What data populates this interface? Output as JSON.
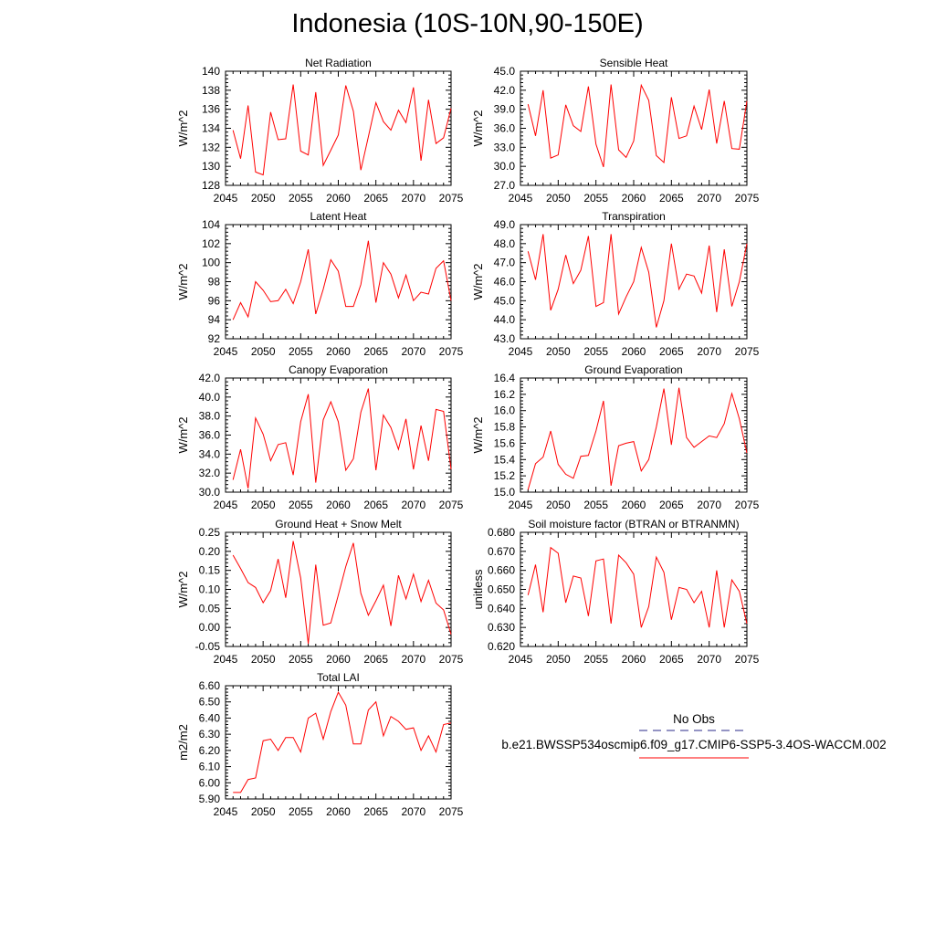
{
  "title": "Indonesia (10S-10N,90-150E)",
  "colors": {
    "series": "#ff0000",
    "obs": "#2a2a8a",
    "axis": "#000000"
  },
  "legend": {
    "obs_label": "No Obs",
    "model_label": "b.e21.BWSSP534oscmip6.f09_g17.CMIP6-SSP5-3.4OS-WACCM.002"
  },
  "chart_data": [
    {
      "type": "line",
      "title": "Net Radiation",
      "ylabel": "W/m^2",
      "xlim": [
        2045,
        2075
      ],
      "ylim": [
        128,
        140
      ],
      "xticks": [
        "2045",
        "2050",
        "2055",
        "2060",
        "2065",
        "2070",
        "2075"
      ],
      "yticks": [
        "128",
        "130",
        "132",
        "134",
        "136",
        "138",
        "140"
      ],
      "x": [
        2046,
        2047,
        2048,
        2049,
        2050,
        2051,
        2052,
        2053,
        2054,
        2055,
        2056,
        2057,
        2058,
        2059,
        2060,
        2061,
        2062,
        2063,
        2064,
        2065,
        2066,
        2067,
        2068,
        2069,
        2070,
        2071,
        2072,
        2073,
        2074,
        2075
      ],
      "series": [
        {
          "values": [
            133.8,
            130.8,
            136.4,
            129.4,
            129.1,
            135.7,
            132.8,
            132.9,
            138.6,
            131.6,
            131.2,
            137.8,
            130.1,
            131.7,
            133.3,
            138.5,
            135.8,
            129.6,
            133.1,
            136.7,
            134.7,
            133.8,
            135.9,
            134.6,
            138.3,
            130.6,
            137.0,
            132.4,
            133.0,
            136.1
          ]
        }
      ]
    },
    {
      "type": "line",
      "title": "Sensible Heat",
      "ylabel": "W/m^2",
      "xlim": [
        2045,
        2075
      ],
      "ylim": [
        27.0,
        45.0
      ],
      "xticks": [
        "2045",
        "2050",
        "2055",
        "2060",
        "2065",
        "2070",
        "2075"
      ],
      "yticks": [
        "27.0",
        "30.0",
        "33.0",
        "36.0",
        "39.0",
        "42.0",
        "45.0"
      ],
      "x": [
        2046,
        2047,
        2048,
        2049,
        2050,
        2051,
        2052,
        2053,
        2054,
        2055,
        2056,
        2057,
        2058,
        2059,
        2060,
        2061,
        2062,
        2063,
        2064,
        2065,
        2066,
        2067,
        2068,
        2069,
        2070,
        2071,
        2072,
        2073,
        2074,
        2075
      ],
      "series": [
        {
          "values": [
            39.8,
            34.8,
            42.0,
            31.3,
            31.8,
            39.7,
            36.4,
            35.5,
            42.6,
            33.5,
            29.9,
            42.9,
            32.6,
            31.4,
            34.0,
            42.8,
            40.4,
            31.7,
            30.6,
            40.9,
            34.4,
            34.8,
            39.5,
            35.8,
            42.1,
            33.6,
            40.3,
            32.8,
            32.7,
            40.3
          ]
        }
      ]
    },
    {
      "type": "line",
      "title": "Latent Heat",
      "ylabel": "W/m^2",
      "xlim": [
        2045,
        2075
      ],
      "ylim": [
        92,
        104
      ],
      "xticks": [
        "2045",
        "2050",
        "2055",
        "2060",
        "2065",
        "2070",
        "2075"
      ],
      "yticks": [
        "92",
        "94",
        "96",
        "98",
        "100",
        "102",
        "104"
      ],
      "x": [
        2046,
        2047,
        2048,
        2049,
        2050,
        2051,
        2052,
        2053,
        2054,
        2055,
        2056,
        2057,
        2058,
        2059,
        2060,
        2061,
        2062,
        2063,
        2064,
        2065,
        2066,
        2067,
        2068,
        2069,
        2070,
        2071,
        2072,
        2073,
        2074,
        2075
      ],
      "series": [
        {
          "values": [
            94.0,
            95.8,
            94.3,
            98.0,
            97.1,
            95.9,
            96.0,
            97.2,
            95.7,
            98.0,
            101.4,
            94.6,
            97.2,
            100.3,
            99.1,
            95.4,
            95.4,
            97.7,
            102.3,
            95.8,
            100.0,
            98.8,
            96.3,
            98.7,
            96.0,
            96.9,
            96.7,
            99.4,
            100.2,
            96.0
          ]
        }
      ]
    },
    {
      "type": "line",
      "title": "Transpiration",
      "ylabel": "W/m^2",
      "xlim": [
        2045,
        2075
      ],
      "ylim": [
        43.0,
        49.0
      ],
      "xticks": [
        "2045",
        "2050",
        "2055",
        "2060",
        "2065",
        "2070",
        "2075"
      ],
      "yticks": [
        "43.0",
        "44.0",
        "45.0",
        "46.0",
        "47.0",
        "48.0",
        "49.0"
      ],
      "x": [
        2046,
        2047,
        2048,
        2049,
        2050,
        2051,
        2052,
        2053,
        2054,
        2055,
        2056,
        2057,
        2058,
        2059,
        2060,
        2061,
        2062,
        2063,
        2064,
        2065,
        2066,
        2067,
        2068,
        2069,
        2070,
        2071,
        2072,
        2073,
        2074,
        2075
      ],
      "series": [
        {
          "values": [
            47.6,
            46.1,
            48.5,
            44.5,
            45.6,
            47.4,
            45.9,
            46.6,
            48.4,
            44.7,
            44.9,
            48.5,
            44.3,
            45.2,
            46.0,
            47.8,
            46.5,
            43.6,
            45.0,
            48.0,
            45.6,
            46.4,
            46.3,
            45.4,
            47.9,
            44.4,
            47.7,
            44.7,
            46.0,
            48.0
          ]
        }
      ]
    },
    {
      "type": "line",
      "title": "Canopy Evaporation",
      "ylabel": "W/m^2",
      "xlim": [
        2045,
        2075
      ],
      "ylim": [
        30.0,
        42.0
      ],
      "xticks": [
        "2045",
        "2050",
        "2055",
        "2060",
        "2065",
        "2070",
        "2075"
      ],
      "yticks": [
        "30.0",
        "32.0",
        "34.0",
        "36.0",
        "38.0",
        "40.0",
        "42.0"
      ],
      "x": [
        2046,
        2047,
        2048,
        2049,
        2050,
        2051,
        2052,
        2053,
        2054,
        2055,
        2056,
        2057,
        2058,
        2059,
        2060,
        2061,
        2062,
        2063,
        2064,
        2065,
        2066,
        2067,
        2068,
        2069,
        2070,
        2071,
        2072,
        2073,
        2074,
        2075
      ],
      "series": [
        {
          "values": [
            31.3,
            34.5,
            30.4,
            37.8,
            36.1,
            33.3,
            35.0,
            35.2,
            31.8,
            37.4,
            40.3,
            31.0,
            37.6,
            39.5,
            37.4,
            32.3,
            33.5,
            38.4,
            40.9,
            32.3,
            38.1,
            36.8,
            34.5,
            37.7,
            32.4,
            37.0,
            33.3,
            38.7,
            38.5,
            32.4
          ]
        }
      ]
    },
    {
      "type": "line",
      "title": "Ground Evaporation",
      "ylabel": "W/m^2",
      "xlim": [
        2045,
        2075
      ],
      "ylim": [
        15.0,
        16.4
      ],
      "xticks": [
        "2045",
        "2050",
        "2055",
        "2060",
        "2065",
        "2070",
        "2075"
      ],
      "yticks": [
        "15.0",
        "15.2",
        "15.4",
        "15.6",
        "15.8",
        "16.0",
        "16.2",
        "16.4"
      ],
      "x": [
        2046,
        2047,
        2048,
        2049,
        2050,
        2051,
        2052,
        2053,
        2054,
        2055,
        2056,
        2057,
        2058,
        2059,
        2060,
        2061,
        2062,
        2063,
        2064,
        2065,
        2066,
        2067,
        2068,
        2069,
        2070,
        2071,
        2072,
        2073,
        2074,
        2075
      ],
      "series": [
        {
          "values": [
            15.03,
            15.35,
            15.43,
            15.75,
            15.34,
            15.22,
            15.17,
            15.44,
            15.45,
            15.75,
            16.12,
            15.08,
            15.57,
            15.6,
            15.62,
            15.26,
            15.4,
            15.8,
            16.27,
            15.58,
            16.28,
            15.67,
            15.55,
            15.62,
            15.69,
            15.67,
            15.84,
            16.21,
            15.9,
            15.48
          ]
        }
      ]
    },
    {
      "type": "line",
      "title": "Ground Heat + Snow Melt",
      "ylabel": "W/m^2",
      "xlim": [
        2045,
        2075
      ],
      "ylim": [
        -0.05,
        0.25
      ],
      "xticks": [
        "2045",
        "2050",
        "2055",
        "2060",
        "2065",
        "2070",
        "2075"
      ],
      "yticks": [
        "-0.05",
        "0.00",
        "0.05",
        "0.10",
        "0.15",
        "0.20",
        "0.25"
      ],
      "x": [
        2046,
        2047,
        2048,
        2049,
        2050,
        2051,
        2052,
        2053,
        2054,
        2055,
        2056,
        2057,
        2058,
        2059,
        2060,
        2061,
        2062,
        2063,
        2064,
        2065,
        2066,
        2067,
        2068,
        2069,
        2070,
        2071,
        2072,
        2073,
        2074,
        2075
      ],
      "series": [
        {
          "values": [
            0.19,
            0.155,
            0.118,
            0.105,
            0.065,
            0.097,
            0.18,
            0.078,
            0.227,
            0.13,
            -0.043,
            0.165,
            0.006,
            0.012,
            0.085,
            0.16,
            0.222,
            0.09,
            0.032,
            0.07,
            0.111,
            0.004,
            0.137,
            0.075,
            0.14,
            0.068,
            0.124,
            0.064,
            0.046,
            -0.018
          ]
        }
      ]
    },
    {
      "type": "line",
      "title": "Soil moisture factor (BTRAN or BTRANMN)",
      "ylabel": "unitless",
      "xlim": [
        2045,
        2075
      ],
      "ylim": [
        0.62,
        0.68
      ],
      "xticks": [
        "2045",
        "2050",
        "2055",
        "2060",
        "2065",
        "2070",
        "2075"
      ],
      "yticks": [
        "0.620",
        "0.630",
        "0.640",
        "0.650",
        "0.660",
        "0.670",
        "0.680"
      ],
      "x": [
        2046,
        2047,
        2048,
        2049,
        2050,
        2051,
        2052,
        2053,
        2054,
        2055,
        2056,
        2057,
        2058,
        2059,
        2060,
        2061,
        2062,
        2063,
        2064,
        2065,
        2066,
        2067,
        2068,
        2069,
        2070,
        2071,
        2072,
        2073,
        2074,
        2075
      ],
      "series": [
        {
          "values": [
            0.647,
            0.663,
            0.638,
            0.672,
            0.669,
            0.643,
            0.657,
            0.656,
            0.636,
            0.665,
            0.666,
            0.632,
            0.668,
            0.664,
            0.658,
            0.63,
            0.641,
            0.667,
            0.659,
            0.634,
            0.651,
            0.65,
            0.643,
            0.649,
            0.63,
            0.66,
            0.63,
            0.655,
            0.649,
            0.632
          ]
        }
      ]
    },
    {
      "type": "line",
      "title": "Total LAI",
      "ylabel": "m2/m2",
      "xlim": [
        2045,
        2075
      ],
      "ylim": [
        5.9,
        6.6
      ],
      "xticks": [
        "2045",
        "2050",
        "2055",
        "2060",
        "2065",
        "2070",
        "2075"
      ],
      "yticks": [
        "5.90",
        "6.00",
        "6.10",
        "6.20",
        "6.30",
        "6.40",
        "6.50",
        "6.60"
      ],
      "x": [
        2046,
        2047,
        2048,
        2049,
        2050,
        2051,
        2052,
        2053,
        2054,
        2055,
        2056,
        2057,
        2058,
        2059,
        2060,
        2061,
        2062,
        2063,
        2064,
        2065,
        2066,
        2067,
        2068,
        2069,
        2070,
        2071,
        2072,
        2073,
        2074,
        2075
      ],
      "series": [
        {
          "values": [
            5.94,
            5.94,
            6.02,
            6.03,
            6.26,
            6.27,
            6.2,
            6.28,
            6.28,
            6.19,
            6.4,
            6.43,
            6.27,
            6.44,
            6.56,
            6.48,
            6.24,
            6.24,
            6.45,
            6.5,
            6.29,
            6.41,
            6.38,
            6.33,
            6.34,
            6.2,
            6.29,
            6.19,
            6.36,
            6.37
          ]
        }
      ]
    }
  ]
}
